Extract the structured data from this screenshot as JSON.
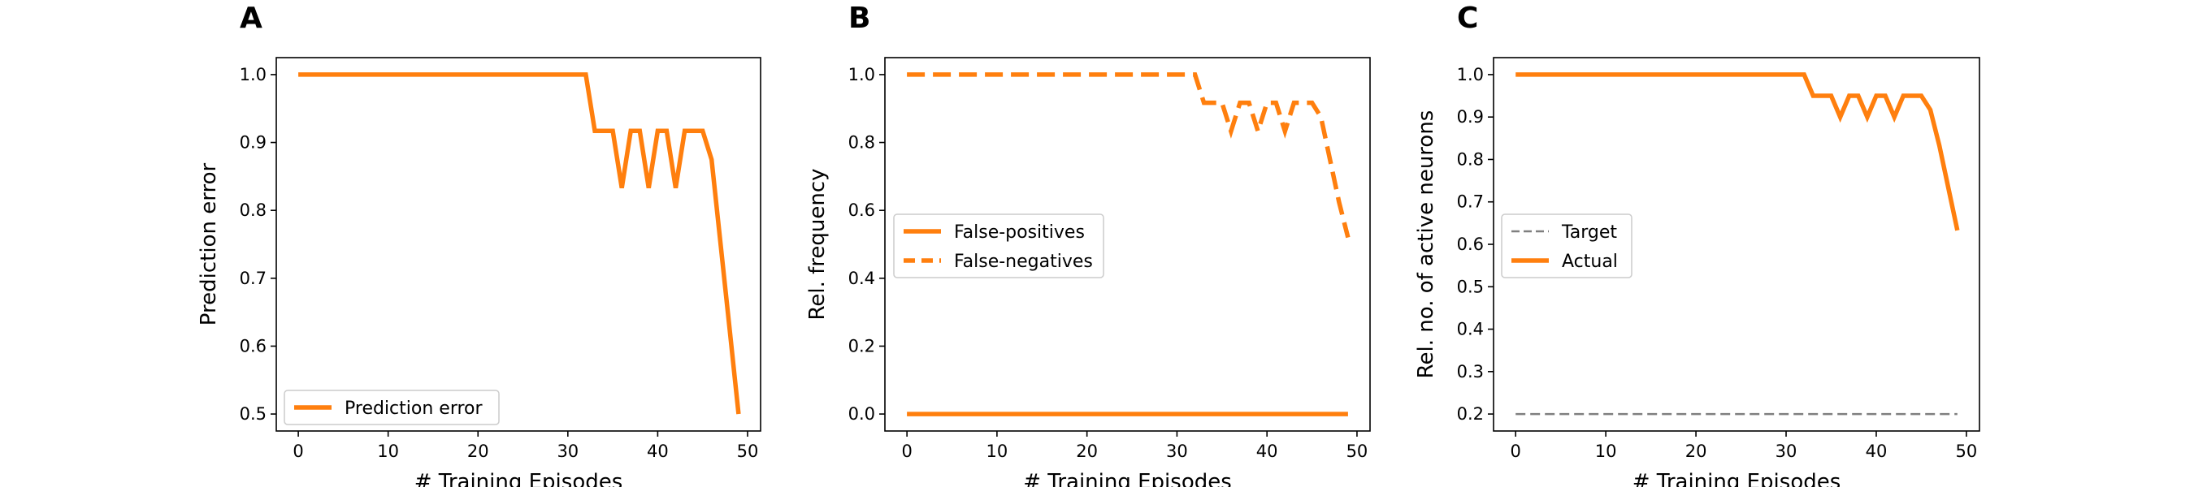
{
  "figure": {
    "background": "#ffffff",
    "line_color": "#ff7f0e",
    "target_color": "#7f7f7f"
  },
  "chart_data": [
    {
      "type": "line",
      "panel_label": "A",
      "title": "",
      "xlabel": "# Training Episodes",
      "ylabel": "Prediction error",
      "xlim": [
        -2.45,
        51.45
      ],
      "ylim": [
        0.475,
        1.025
      ],
      "xticks": [
        0,
        10,
        20,
        30,
        40,
        50
      ],
      "yticks": [
        0.5,
        0.6,
        0.7,
        0.8,
        0.9,
        1.0
      ],
      "ytick_labels": [
        "0.5",
        "0.6",
        "0.7",
        "0.8",
        "0.9",
        "1.0"
      ],
      "grid": false,
      "legend_position": "lower-left",
      "series": [
        {
          "name": "Prediction error",
          "color": "#ff7f0e",
          "style": "solid",
          "x": [
            0,
            1,
            2,
            3,
            4,
            5,
            6,
            7,
            8,
            9,
            10,
            11,
            12,
            13,
            14,
            15,
            16,
            17,
            18,
            19,
            20,
            21,
            22,
            23,
            24,
            25,
            26,
            27,
            28,
            29,
            30,
            31,
            32,
            33,
            34,
            35,
            36,
            37,
            38,
            39,
            40,
            41,
            42,
            43,
            44,
            45,
            46,
            47,
            48,
            49
          ],
          "y": [
            1,
            1,
            1,
            1,
            1,
            1,
            1,
            1,
            1,
            1,
            1,
            1,
            1,
            1,
            1,
            1,
            1,
            1,
            1,
            1,
            1,
            1,
            1,
            1,
            1,
            1,
            1,
            1,
            1,
            1,
            1,
            1,
            1,
            0.917,
            0.917,
            0.917,
            0.833,
            0.917,
            0.917,
            0.833,
            0.917,
            0.917,
            0.833,
            0.917,
            0.917,
            0.917,
            0.875,
            0.75,
            0.625,
            0.5
          ]
        }
      ]
    },
    {
      "type": "line",
      "panel_label": "B",
      "title": "",
      "xlabel": "# Training Episodes",
      "ylabel": "Rel. frequency",
      "xlim": [
        -2.45,
        51.45
      ],
      "ylim": [
        -0.05,
        1.05
      ],
      "xticks": [
        0,
        10,
        20,
        30,
        40,
        50
      ],
      "yticks": [
        0.0,
        0.2,
        0.4,
        0.6,
        0.8,
        1.0
      ],
      "ytick_labels": [
        "0.0",
        "0.2",
        "0.4",
        "0.6",
        "0.8",
        "1.0"
      ],
      "grid": false,
      "legend_position": "center-left",
      "series": [
        {
          "name": "False-positives",
          "color": "#ff7f0e",
          "style": "solid",
          "x": [
            0,
            1,
            2,
            3,
            4,
            5,
            6,
            7,
            8,
            9,
            10,
            11,
            12,
            13,
            14,
            15,
            16,
            17,
            18,
            19,
            20,
            21,
            22,
            23,
            24,
            25,
            26,
            27,
            28,
            29,
            30,
            31,
            32,
            33,
            34,
            35,
            36,
            37,
            38,
            39,
            40,
            41,
            42,
            43,
            44,
            45,
            46,
            47,
            48,
            49
          ],
          "y": [
            0,
            0,
            0,
            0,
            0,
            0,
            0,
            0,
            0,
            0,
            0,
            0,
            0,
            0,
            0,
            0,
            0,
            0,
            0,
            0,
            0,
            0,
            0,
            0,
            0,
            0,
            0,
            0,
            0,
            0,
            0,
            0,
            0,
            0,
            0,
            0,
            0,
            0,
            0,
            0,
            0,
            0,
            0,
            0,
            0,
            0,
            0,
            0,
            0,
            0
          ]
        },
        {
          "name": "False-negatives",
          "color": "#ff7f0e",
          "style": "dashed",
          "x": [
            0,
            1,
            2,
            3,
            4,
            5,
            6,
            7,
            8,
            9,
            10,
            11,
            12,
            13,
            14,
            15,
            16,
            17,
            18,
            19,
            20,
            21,
            22,
            23,
            24,
            25,
            26,
            27,
            28,
            29,
            30,
            31,
            32,
            33,
            34,
            35,
            36,
            37,
            38,
            39,
            40,
            41,
            42,
            43,
            44,
            45,
            46,
            47,
            48,
            49
          ],
          "y": [
            1,
            1,
            1,
            1,
            1,
            1,
            1,
            1,
            1,
            1,
            1,
            1,
            1,
            1,
            1,
            1,
            1,
            1,
            1,
            1,
            1,
            1,
            1,
            1,
            1,
            1,
            1,
            1,
            1,
            1,
            1,
            1,
            1,
            0.917,
            0.917,
            0.917,
            0.833,
            0.917,
            0.917,
            0.833,
            0.917,
            0.917,
            0.833,
            0.917,
            0.917,
            0.917,
            0.875,
            0.75,
            0.625,
            0.52
          ]
        }
      ]
    },
    {
      "type": "line",
      "panel_label": "C",
      "title": "",
      "xlabel": "# Training Episodes",
      "ylabel": "Rel. no. of active neurons",
      "xlim": [
        -2.45,
        51.45
      ],
      "ylim": [
        0.16,
        1.04
      ],
      "xticks": [
        0,
        10,
        20,
        30,
        40,
        50
      ],
      "yticks": [
        0.2,
        0.3,
        0.4,
        0.5,
        0.6,
        0.7,
        0.8,
        0.9,
        1.0
      ],
      "ytick_labels": [
        "0.2",
        "0.3",
        "0.4",
        "0.5",
        "0.6",
        "0.7",
        "0.8",
        "0.9",
        "1.0"
      ],
      "grid": false,
      "legend_position": "center-left",
      "series": [
        {
          "name": "Target",
          "color": "#7f7f7f",
          "style": "dashed",
          "x": [
            0,
            1,
            2,
            3,
            4,
            5,
            6,
            7,
            8,
            9,
            10,
            11,
            12,
            13,
            14,
            15,
            16,
            17,
            18,
            19,
            20,
            21,
            22,
            23,
            24,
            25,
            26,
            27,
            28,
            29,
            30,
            31,
            32,
            33,
            34,
            35,
            36,
            37,
            38,
            39,
            40,
            41,
            42,
            43,
            44,
            45,
            46,
            47,
            48,
            49
          ],
          "y": [
            0.2,
            0.2,
            0.2,
            0.2,
            0.2,
            0.2,
            0.2,
            0.2,
            0.2,
            0.2,
            0.2,
            0.2,
            0.2,
            0.2,
            0.2,
            0.2,
            0.2,
            0.2,
            0.2,
            0.2,
            0.2,
            0.2,
            0.2,
            0.2,
            0.2,
            0.2,
            0.2,
            0.2,
            0.2,
            0.2,
            0.2,
            0.2,
            0.2,
            0.2,
            0.2,
            0.2,
            0.2,
            0.2,
            0.2,
            0.2,
            0.2,
            0.2,
            0.2,
            0.2,
            0.2,
            0.2,
            0.2,
            0.2,
            0.2,
            0.2
          ]
        },
        {
          "name": "Actual",
          "color": "#ff7f0e",
          "style": "solid",
          "x": [
            0,
            1,
            2,
            3,
            4,
            5,
            6,
            7,
            8,
            9,
            10,
            11,
            12,
            13,
            14,
            15,
            16,
            17,
            18,
            19,
            20,
            21,
            22,
            23,
            24,
            25,
            26,
            27,
            28,
            29,
            30,
            31,
            32,
            33,
            34,
            35,
            36,
            37,
            38,
            39,
            40,
            41,
            42,
            43,
            44,
            45,
            46,
            47,
            48,
            49
          ],
          "y": [
            1,
            1,
            1,
            1,
            1,
            1,
            1,
            1,
            1,
            1,
            1,
            1,
            1,
            1,
            1,
            1,
            1,
            1,
            1,
            1,
            1,
            1,
            1,
            1,
            1,
            1,
            1,
            1,
            1,
            1,
            1,
            1,
            1,
            0.95,
            0.95,
            0.95,
            0.9,
            0.95,
            0.95,
            0.9,
            0.95,
            0.95,
            0.9,
            0.95,
            0.95,
            0.95,
            0.917,
            0.833,
            0.733,
            0.633
          ]
        }
      ]
    }
  ]
}
